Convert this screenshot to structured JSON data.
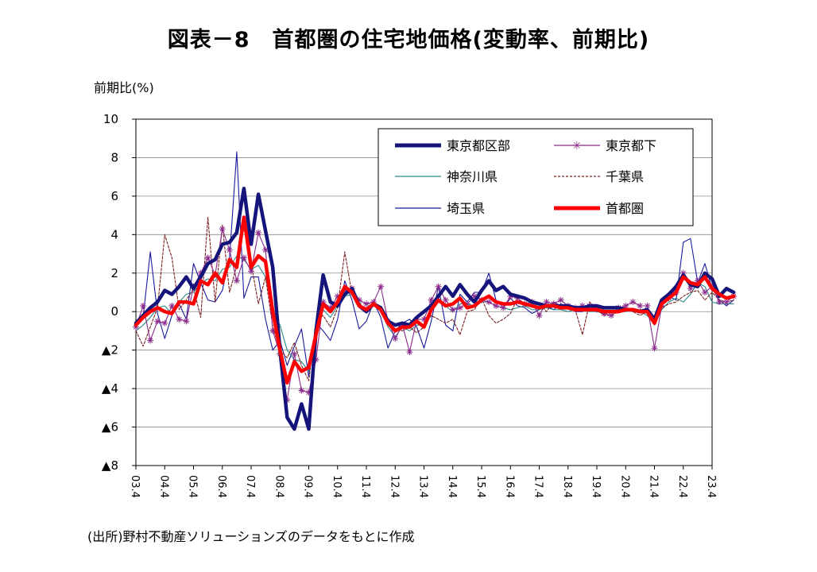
{
  "chart_data": {
    "type": "line",
    "title": "図表－8　首都圏の住宅地価格(変動率、前期比)",
    "ylabel": "前期比(%)",
    "source": "(出所)野村不動産ソリューションズのデータをもとに作成",
    "ylim": [
      -8,
      10
    ],
    "y_ticks": [
      10,
      8,
      6,
      4,
      2,
      0,
      -2,
      -4,
      -6,
      -8
    ],
    "y_tick_labels": [
      "10",
      "8",
      "6",
      "4",
      "2",
      "0",
      "▲2",
      "▲4",
      "▲6",
      "▲8"
    ],
    "x_tick_labels": [
      "03.4",
      "04.4",
      "05.4",
      "06.4",
      "07.4",
      "08.4",
      "09.4",
      "10.4",
      "11.4",
      "12.4",
      "13.4",
      "14.4",
      "15.4",
      "16.4",
      "17.4",
      "18.4",
      "19.4",
      "20.4",
      "21.4",
      "22.4",
      "23.4"
    ],
    "points_per_year": 4,
    "grid": true,
    "legend_position": "top-right",
    "series": [
      {
        "name": "東京都区部",
        "color": "#14147a",
        "style": "thick",
        "values": [
          -0.6,
          -0.2,
          0.2,
          0.5,
          1.1,
          0.9,
          1.3,
          1.8,
          1.2,
          1.8,
          2.5,
          2.7,
          3.5,
          3.6,
          4.1,
          6.4,
          3.5,
          6.1,
          4.2,
          2.3,
          -2.0,
          -5.5,
          -6.1,
          -4.8,
          -6.1,
          -1.0,
          1.9,
          0.5,
          0.3,
          0.9,
          1.2,
          0.3,
          0.0,
          0.4,
          0.2,
          -0.5,
          -0.7,
          -0.6,
          -0.7,
          -0.3,
          0.0,
          0.3,
          0.8,
          1.3,
          0.8,
          1.4,
          0.9,
          0.5,
          1.1,
          1.6,
          1.1,
          1.3,
          0.9,
          0.8,
          0.7,
          0.5,
          0.4,
          0.3,
          0.3,
          0.3,
          0.3,
          0.2,
          0.2,
          0.3,
          0.3,
          0.2,
          0.2,
          0.2,
          0.1,
          0.1,
          0.0,
          0.1,
          -0.4,
          0.6,
          0.9,
          1.3,
          1.9,
          1.4,
          1.3,
          2.0,
          1.7,
          0.8,
          1.2,
          1.0
        ]
      },
      {
        "name": "東京都下",
        "color": "#8b2a8b",
        "style": "star",
        "values": [
          -0.8,
          0.3,
          -1.5,
          -0.5,
          -0.6,
          0.3,
          -0.4,
          -0.5,
          1.3,
          2.0,
          2.8,
          1.9,
          4.3,
          3.2,
          1.6,
          2.8,
          2.1,
          4.1,
          3.2,
          -1.0,
          -2.2,
          -4.6,
          -2.2,
          -4.1,
          -4.2,
          -2.5,
          0.5,
          0.2,
          0.8,
          1.1,
          1.2,
          0.6,
          0.4,
          0.5,
          1.3,
          -0.5,
          -1.4,
          -0.7,
          -2.1,
          -0.4,
          -0.4,
          0.6,
          1.3,
          0.6,
          0.1,
          0.2,
          0.4,
          0.8,
          0.6,
          0.5,
          0.3,
          0.2,
          0.8,
          0.7,
          0.4,
          0.5,
          -0.2,
          0.5,
          0.4,
          0.6,
          0.3,
          0.2,
          0.3,
          0.3,
          0.1,
          -0.1,
          -0.2,
          0.2,
          0.3,
          0.5,
          0.3,
          0.3,
          -1.9,
          0.3,
          0.7,
          1.0,
          2.0,
          1.2,
          1.6,
          1.0,
          1.3,
          0.5,
          0.5,
          0.8
        ]
      },
      {
        "name": "神奈川県",
        "color": "#2a8a8a",
        "style": "thin",
        "values": [
          -1.0,
          -0.7,
          -0.3,
          0.2,
          0.3,
          -0.1,
          0.5,
          0.9,
          1.0,
          1.5,
          1.7,
          1.6,
          2.2,
          2.3,
          2.9,
          2.7,
          2.2,
          2.4,
          1.8,
          0.0,
          -0.7,
          -2.0,
          -2.5,
          -2.6,
          -3.1,
          -0.8,
          0.1,
          -0.3,
          0.3,
          0.8,
          0.9,
          0.3,
          0.0,
          0.3,
          0.1,
          -0.8,
          -1.3,
          -0.8,
          -1.0,
          -0.7,
          -0.7,
          0.2,
          0.6,
          0.3,
          0.0,
          0.4,
          0.4,
          0.3,
          0.5,
          0.5,
          0.3,
          0.2,
          0.1,
          0.2,
          0.3,
          0.1,
          0.1,
          0.2,
          0.1,
          0.1,
          0.0,
          0.1,
          0.1,
          0.0,
          0.0,
          -0.1,
          0.0,
          0.0,
          0.0,
          0.1,
          0.0,
          -0.2,
          -0.7,
          0.1,
          0.5,
          0.7,
          0.5,
          0.9,
          1.5,
          1.3,
          0.5,
          0.4,
          0.4,
          0.4
        ]
      },
      {
        "name": "千葉県",
        "color": "#7a2020",
        "style": "dashed",
        "values": [
          -1.0,
          -1.8,
          -0.8,
          0.2,
          4.0,
          2.8,
          0.1,
          0.6,
          1.2,
          -0.3,
          4.9,
          0.5,
          4.5,
          1.0,
          2.4,
          4.6,
          2.5,
          0.4,
          1.8,
          -0.8,
          -2.0,
          -2.4,
          -1.6,
          -2.8,
          -3.6,
          -0.5,
          -0.2,
          -0.8,
          0.2,
          3.1,
          0.9,
          0.5,
          0.0,
          0.3,
          0.2,
          -0.4,
          -0.9,
          -1.0,
          -0.8,
          -1.1,
          -0.8,
          -0.2,
          -0.4,
          -0.6,
          -0.4,
          -1.2,
          0.0,
          0.1,
          0.7,
          -0.2,
          -0.6,
          -0.4,
          -0.1,
          0.7,
          0.3,
          0.3,
          0.4,
          0.0,
          0.5,
          0.3,
          0.2,
          0.1,
          -1.2,
          0.5,
          0.1,
          -0.2,
          -0.2,
          0.0,
          0.1,
          0.0,
          -0.2,
          0.0,
          -0.5,
          0.2,
          0.4,
          0.5,
          0.8,
          1.0,
          1.1,
          0.6,
          1.0,
          0.6,
          0.5,
          0.6
        ]
      },
      {
        "name": "埼玉県",
        "color": "#1a1a9e",
        "style": "thin",
        "values": [
          -0.8,
          -0.3,
          3.1,
          -0.1,
          -1.4,
          -0.2,
          0.4,
          -0.4,
          2.5,
          1.5,
          0.6,
          0.5,
          1.1,
          2.8,
          8.3,
          0.7,
          1.8,
          1.8,
          -0.4,
          -2.0,
          -1.5,
          -2.8,
          -1.8,
          -0.9,
          -3.4,
          -0.6,
          -1.0,
          -1.5,
          -0.4,
          1.6,
          0.6,
          -0.9,
          -0.5,
          0.5,
          -0.3,
          -1.9,
          -1.0,
          -0.6,
          -0.4,
          -0.8,
          -1.9,
          -0.5,
          1.3,
          -0.7,
          -1.0,
          0.9,
          0.5,
          1.0,
          1.0,
          2.0,
          0.6,
          0.2,
          0.7,
          0.3,
          0.2,
          -0.1,
          0.1,
          0.3,
          0.1,
          0.4,
          0.2,
          0.0,
          0.0,
          0.3,
          0.2,
          0.0,
          0.0,
          0.0,
          0.2,
          0.0,
          0.1,
          0.0,
          -0.3,
          0.5,
          0.8,
          0.6,
          3.6,
          3.8,
          1.5,
          2.5,
          1.2,
          0.6,
          0.3,
          0.6
        ]
      },
      {
        "name": "首都圏",
        "color": "#ff0000",
        "style": "thick",
        "values": [
          -0.7,
          -0.3,
          0.0,
          0.2,
          0.0,
          -0.1,
          0.5,
          0.5,
          0.4,
          1.6,
          1.4,
          2.0,
          1.5,
          2.7,
          2.3,
          4.9,
          2.3,
          2.9,
          2.6,
          0.0,
          -2.0,
          -3.7,
          -2.6,
          -3.1,
          -2.9,
          -1.2,
          0.4,
          0.0,
          0.5,
          1.3,
          1.0,
          0.3,
          0.1,
          0.4,
          0.1,
          -0.6,
          -1.0,
          -0.8,
          -0.8,
          -0.5,
          -0.8,
          0.1,
          0.6,
          0.3,
          0.4,
          0.7,
          0.2,
          0.3,
          0.6,
          0.8,
          0.5,
          0.4,
          0.4,
          0.5,
          0.4,
          0.3,
          0.2,
          0.3,
          0.3,
          0.2,
          0.2,
          0.1,
          0.1,
          0.1,
          0.1,
          0.0,
          0.0,
          0.0,
          0.1,
          0.1,
          0.0,
          0.0,
          -0.6,
          0.4,
          0.7,
          1.0,
          1.8,
          1.5,
          1.4,
          1.8,
          1.2,
          0.9,
          0.7,
          0.8
        ]
      }
    ]
  }
}
